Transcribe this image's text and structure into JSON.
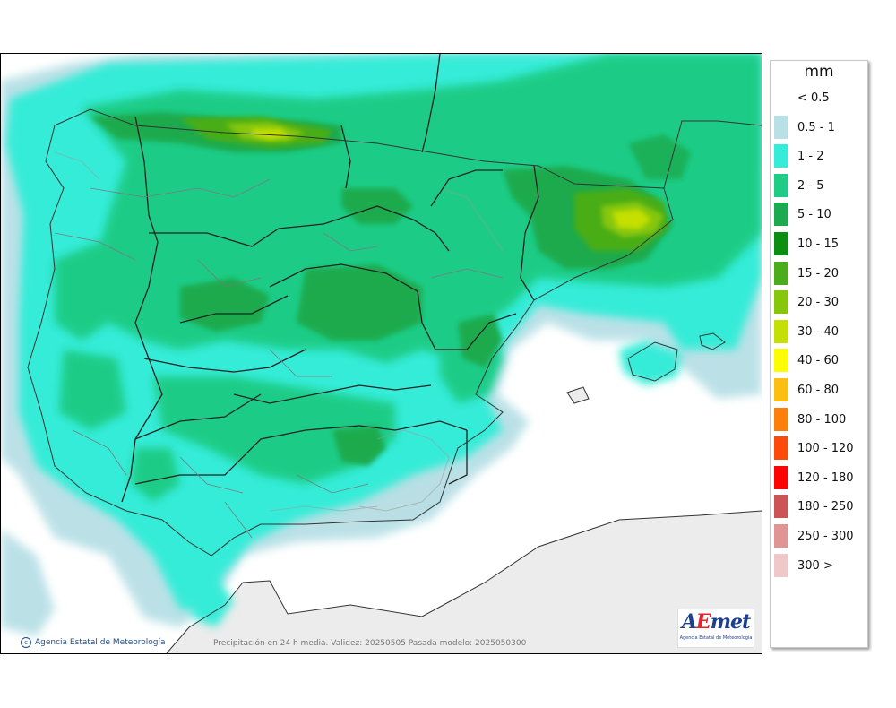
{
  "legend": {
    "unit": "mm",
    "items": [
      {
        "label": "< 0.5",
        "color": "#ffffff"
      },
      {
        "label": "0.5 - 1",
        "color": "#b8e0e6"
      },
      {
        "label": "1 - 2",
        "color": "#34ecd8"
      },
      {
        "label": "2 - 5",
        "color": "#1fcc86"
      },
      {
        "label": "5 - 10",
        "color": "#1caa4e"
      },
      {
        "label": "10 - 15",
        "color": "#0b8f10"
      },
      {
        "label": "15 - 20",
        "color": "#4aad19"
      },
      {
        "label": "20 - 30",
        "color": "#86c60c"
      },
      {
        "label": "30 - 40",
        "color": "#c4df06"
      },
      {
        "label": "40 - 60",
        "color": "#fcfc04"
      },
      {
        "label": "60 - 80",
        "color": "#fcbe10"
      },
      {
        "label": "80 - 100",
        "color": "#fc7f0c"
      },
      {
        "label": "100 - 120",
        "color": "#fc4a0a"
      },
      {
        "label": "120 - 180",
        "color": "#fc0404"
      },
      {
        "label": "180 - 250",
        "color": "#cc5454"
      },
      {
        "label": "250 - 300",
        "color": "#e09494"
      },
      {
        "label": "300 >",
        "color": "#f1c8c8"
      }
    ]
  },
  "map": {
    "credit": "Agencia Estatal de Meteorología",
    "caption": "Precipitación en 24 h media. Validez: 20250505 Pasada modelo: 2025050300",
    "logo_text": "AEmet",
    "logo_subtitle": "Agencia Estatal de Meteorología"
  }
}
